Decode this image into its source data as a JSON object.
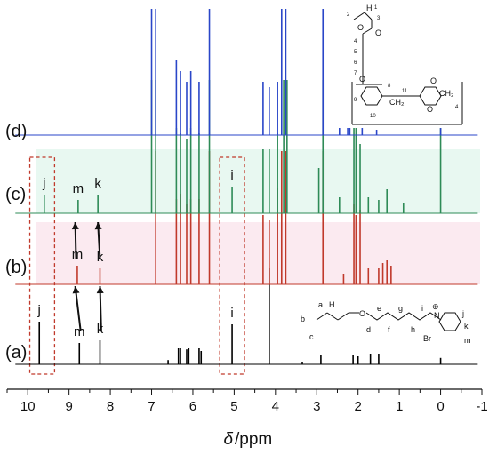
{
  "chart_data": {
    "type": "line",
    "xlabel_symbol": "δ",
    "xlabel_unit": "/ppm",
    "xlim": [
      10.5,
      -1
    ],
    "x_reversed": true,
    "x_ticks": [
      "10",
      "9",
      "8",
      "7",
      "6",
      "5",
      "4",
      "3",
      "2",
      "1",
      "0",
      "-1"
    ],
    "colors": {
      "a": "#000000",
      "b": "#c0392b",
      "c": "#2e8b57",
      "d": "#2a46c8",
      "band_b": "#f7d9e4",
      "band_c": "#d6f3e6",
      "box": "#c0392b"
    },
    "series": [
      {
        "name": "(a)",
        "peaks": [
          {
            "x": 9.72,
            "h": 0.8,
            "label": "j"
          },
          {
            "x": 8.75,
            "h": 0.4,
            "label": "m"
          },
          {
            "x": 8.25,
            "h": 0.45,
            "label": "k"
          },
          {
            "x": 6.6,
            "h": 0.08
          },
          {
            "x": 6.35,
            "h": 0.3
          },
          {
            "x": 6.3,
            "h": 0.3
          },
          {
            "x": 6.15,
            "h": 0.28
          },
          {
            "x": 6.1,
            "h": 0.3
          },
          {
            "x": 5.85,
            "h": 0.3
          },
          {
            "x": 5.8,
            "h": 0.25
          },
          {
            "x": 5.05,
            "h": 0.75,
            "label": "i"
          },
          {
            "x": 4.15,
            "h": 1.8
          },
          {
            "x": 3.35,
            "h": 0.05
          },
          {
            "x": 2.9,
            "h": 0.18
          },
          {
            "x": 2.12,
            "h": 0.18
          },
          {
            "x": 2.0,
            "h": 0.15
          },
          {
            "x": 1.7,
            "h": 0.2
          },
          {
            "x": 1.5,
            "h": 0.2
          },
          {
            "x": 0.0,
            "h": 0.12
          }
        ]
      },
      {
        "name": "(b)",
        "peaks": [
          {
            "x": 8.8,
            "h": 0.35,
            "label": "m"
          },
          {
            "x": 8.25,
            "h": 0.3,
            "label": "k"
          },
          {
            "x": 6.9,
            "h": 2.5
          },
          {
            "x": 6.4,
            "h": 1.6
          },
          {
            "x": 6.3,
            "h": 1.7
          },
          {
            "x": 6.15,
            "h": 1.5
          },
          {
            "x": 6.05,
            "h": 1.6
          },
          {
            "x": 5.85,
            "h": 1.6
          },
          {
            "x": 5.6,
            "h": 2.5
          },
          {
            "x": 4.3,
            "h": 1.3
          },
          {
            "x": 4.15,
            "h": 1.2
          },
          {
            "x": 3.95,
            "h": 1.8
          },
          {
            "x": 3.85,
            "h": 2.5
          },
          {
            "x": 3.75,
            "h": 2.5
          },
          {
            "x": 2.85,
            "h": 2.5
          },
          {
            "x": 2.35,
            "h": 0.2
          },
          {
            "x": 2.1,
            "h": 1.5
          },
          {
            "x": 2.05,
            "h": 1.3
          },
          {
            "x": 1.95,
            "h": 1.4
          },
          {
            "x": 1.75,
            "h": 0.3
          },
          {
            "x": 1.5,
            "h": 0.3
          },
          {
            "x": 1.4,
            "h": 0.4
          },
          {
            "x": 1.3,
            "h": 0.45
          },
          {
            "x": 1.2,
            "h": 0.35
          }
        ]
      },
      {
        "name": "(c)",
        "peaks": [
          {
            "x": 9.6,
            "h": 0.35,
            "label": "j"
          },
          {
            "x": 8.78,
            "h": 0.25,
            "label": "m"
          },
          {
            "x": 8.3,
            "h": 0.35,
            "label": "k"
          },
          {
            "x": 7.0,
            "h": 2.5
          },
          {
            "x": 6.9,
            "h": 2.5
          },
          {
            "x": 6.4,
            "h": 1.6
          },
          {
            "x": 6.3,
            "h": 1.5
          },
          {
            "x": 6.15,
            "h": 1.4
          },
          {
            "x": 6.05,
            "h": 1.6
          },
          {
            "x": 5.85,
            "h": 1.5
          },
          {
            "x": 5.6,
            "h": 2.5
          },
          {
            "x": 5.05,
            "h": 0.5,
            "label": "i"
          },
          {
            "x": 4.3,
            "h": 1.2
          },
          {
            "x": 4.15,
            "h": 1.2
          },
          {
            "x": 3.95,
            "h": 1.5
          },
          {
            "x": 3.8,
            "h": 2.5
          },
          {
            "x": 3.72,
            "h": 2.5
          },
          {
            "x": 2.95,
            "h": 0.85
          },
          {
            "x": 2.85,
            "h": 2.5
          },
          {
            "x": 2.45,
            "h": 0.3
          },
          {
            "x": 2.1,
            "h": 2.2
          },
          {
            "x": 2.05,
            "h": 2.0
          },
          {
            "x": 1.95,
            "h": 1.3
          },
          {
            "x": 1.75,
            "h": 0.3
          },
          {
            "x": 1.5,
            "h": 0.25
          },
          {
            "x": 1.3,
            "h": 0.45
          },
          {
            "x": 0.9,
            "h": 0.2
          },
          {
            "x": 0.0,
            "h": 2.5
          }
        ]
      },
      {
        "name": "(d)",
        "peaks": [
          {
            "x": 7.0,
            "h": 2.5
          },
          {
            "x": 6.9,
            "h": 2.5
          },
          {
            "x": 6.4,
            "h": 1.4
          },
          {
            "x": 6.3,
            "h": 1.2
          },
          {
            "x": 6.15,
            "h": 1.0
          },
          {
            "x": 6.05,
            "h": 1.2
          },
          {
            "x": 5.85,
            "h": 1.0
          },
          {
            "x": 5.6,
            "h": 2.5
          },
          {
            "x": 4.3,
            "h": 1.0
          },
          {
            "x": 4.15,
            "h": 0.9
          },
          {
            "x": 3.95,
            "h": 1.0
          },
          {
            "x": 3.85,
            "h": 2.5
          },
          {
            "x": 3.75,
            "h": 2.5
          },
          {
            "x": 2.85,
            "h": 2.5
          },
          {
            "x": 2.45,
            "h": 0.3
          },
          {
            "x": 2.25,
            "h": 0.2
          },
          {
            "x": 2.2,
            "h": 0.2
          },
          {
            "x": 1.9,
            "h": 0.2
          },
          {
            "x": 1.55,
            "h": 0.1
          },
          {
            "x": 0.0,
            "h": 0.15
          }
        ]
      }
    ]
  },
  "structures": {
    "monomer_labels": [
      "a",
      "H",
      "b",
      "c",
      "O",
      "d",
      "e",
      "f",
      "g",
      "h",
      "i",
      "j",
      "k",
      "m",
      "Br",
      "N",
      "⊕"
    ],
    "polymer_labels": [
      "H",
      "1",
      "2",
      "3",
      "4",
      "5",
      "6",
      "7",
      "8",
      "9",
      "10",
      "11",
      "O",
      "O",
      "O",
      "O",
      "CH₂",
      "CH₂",
      "O",
      "4"
    ]
  }
}
